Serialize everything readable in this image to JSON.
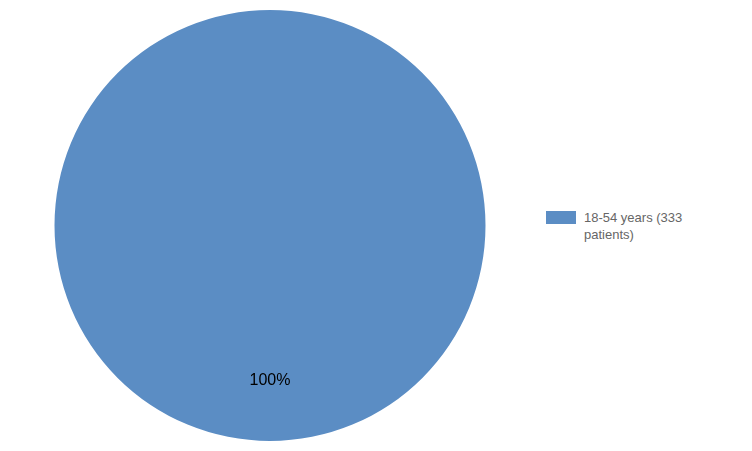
{
  "chart_data": {
    "type": "pie",
    "categories": [
      "18-54 years  (333\npatients)"
    ],
    "values": [
      100
    ],
    "value_labels": [
      "100%"
    ],
    "colors": [
      "#5b8dc4"
    ],
    "data_labels": true,
    "legend": "right"
  }
}
